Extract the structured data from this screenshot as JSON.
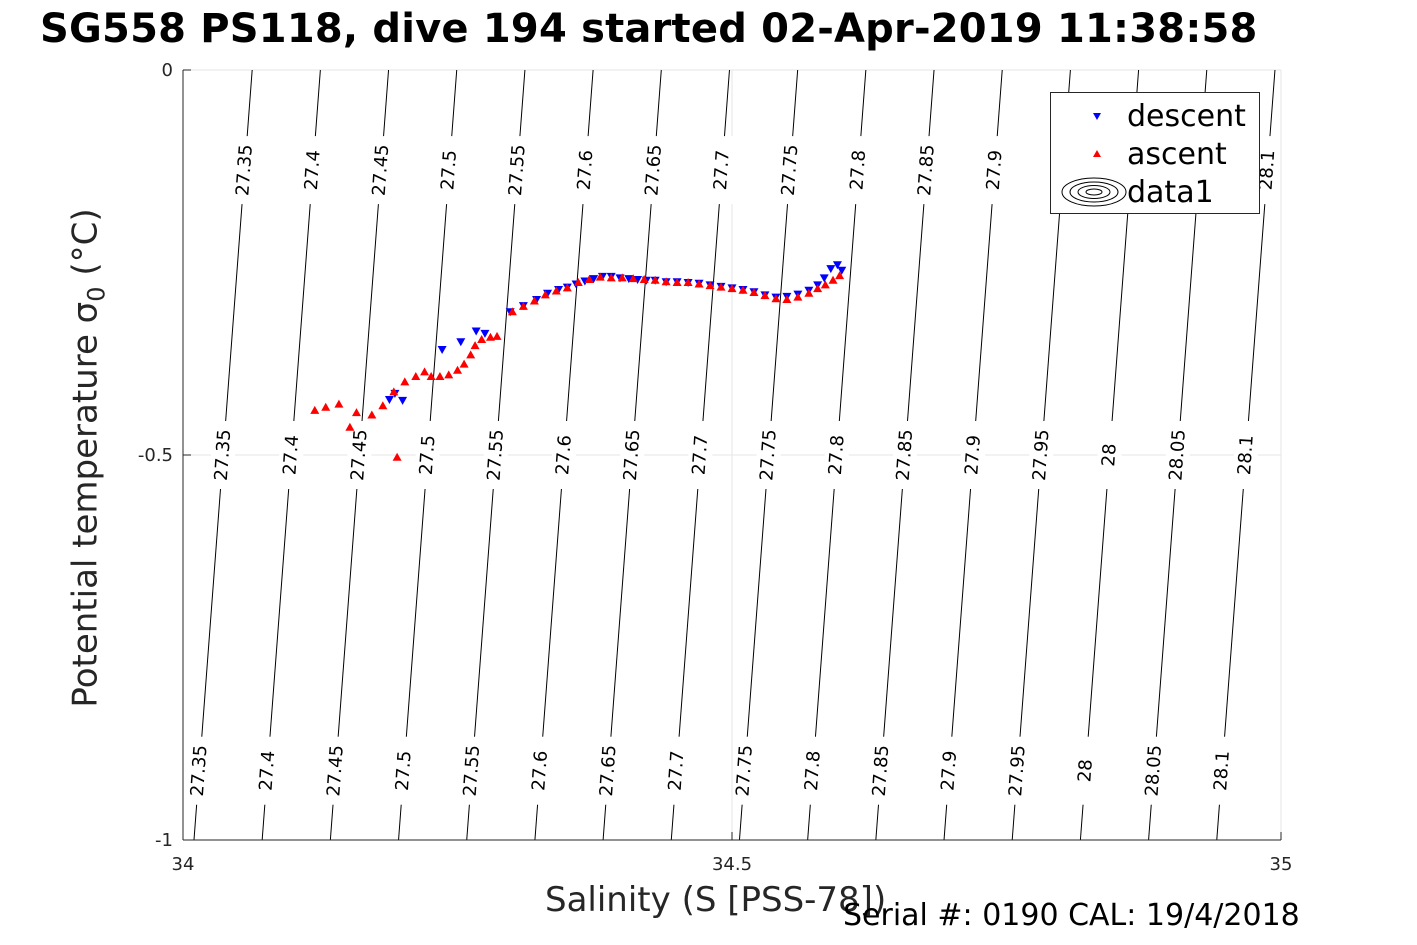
{
  "title": "SG558 PS118, dive 194 started 02-Apr-2019 11:38:58",
  "footer": {
    "serial": "Serial #: 0190  CAL: 19/4/2018"
  },
  "chart_data": {
    "type": "scatter",
    "xlabel": "Salinity (S [PSS-78])",
    "ylabel_text": "Potential temperature ",
    "ylabel_symbol": "σ",
    "ylabel_sub": "0",
    "ylabel_unit": " (°C)",
    "xlim": [
      34,
      35
    ],
    "ylim": [
      -1,
      0
    ],
    "y_reversed": true,
    "xticks": [
      34,
      34.5,
      35
    ],
    "xtick_labels": [
      "34",
      "34.5",
      "35"
    ],
    "yticks": [
      0,
      -0.5,
      -1
    ],
    "ytick_labels": [
      "0",
      "-0.5",
      "-1"
    ],
    "grid": true,
    "legend_position": "top-right",
    "legend": [
      "descent",
      "ascent",
      "data1"
    ],
    "colors": {
      "descent": "#0000ff",
      "ascent": "#ff0000",
      "contour": "#000000"
    },
    "contour_labels": [
      "27.35",
      "27.4",
      "27.45",
      "27.5",
      "27.55",
      "27.6",
      "27.65",
      "27.7",
      "27.75",
      "27.8",
      "27.85",
      "27.9",
      "27.95",
      "28",
      "28.05",
      "28.1"
    ],
    "contour_label_rows": [
      {
        "y": -0.13,
        "first": 0,
        "last": 15
      },
      {
        "y": -0.5,
        "first": 0,
        "last": 15
      },
      {
        "y": -0.91,
        "first": 0,
        "last": 15
      }
    ],
    "series": [
      {
        "name": "descent",
        "marker": "triangle-down",
        "points": [
          [
            34.188,
            -0.428
          ],
          [
            34.193,
            -0.42
          ],
          [
            34.2,
            -0.429
          ],
          [
            34.236,
            -0.363
          ],
          [
            34.253,
            -0.353
          ],
          [
            34.267,
            -0.339
          ],
          [
            34.275,
            -0.342
          ],
          [
            34.298,
            -0.314
          ],
          [
            34.31,
            -0.306
          ],
          [
            34.322,
            -0.298
          ],
          [
            34.332,
            -0.29
          ],
          [
            34.342,
            -0.285
          ],
          [
            34.35,
            -0.282
          ],
          [
            34.358,
            -0.278
          ],
          [
            34.366,
            -0.274
          ],
          [
            34.374,
            -0.271
          ],
          [
            34.382,
            -0.268
          ],
          [
            34.39,
            -0.268
          ],
          [
            34.398,
            -0.27
          ],
          [
            34.406,
            -0.271
          ],
          [
            34.414,
            -0.272
          ],
          [
            34.422,
            -0.273
          ],
          [
            34.43,
            -0.273
          ],
          [
            34.44,
            -0.275
          ],
          [
            34.45,
            -0.275
          ],
          [
            34.46,
            -0.276
          ],
          [
            34.47,
            -0.277
          ],
          [
            34.48,
            -0.279
          ],
          [
            34.49,
            -0.281
          ],
          [
            34.5,
            -0.283
          ],
          [
            34.51,
            -0.285
          ],
          [
            34.52,
            -0.288
          ],
          [
            34.53,
            -0.292
          ],
          [
            34.54,
            -0.295
          ],
          [
            34.55,
            -0.294
          ],
          [
            34.56,
            -0.291
          ],
          [
            34.57,
            -0.286
          ],
          [
            34.578,
            -0.279
          ],
          [
            34.584,
            -0.27
          ],
          [
            34.59,
            -0.258
          ],
          [
            34.596,
            -0.253
          ],
          [
            34.6,
            -0.26
          ]
        ]
      },
      {
        "name": "ascent",
        "marker": "triangle-up",
        "points": [
          [
            34.12,
            -0.442
          ],
          [
            34.13,
            -0.438
          ],
          [
            34.142,
            -0.434
          ],
          [
            34.152,
            -0.464
          ],
          [
            34.158,
            -0.445
          ],
          [
            34.172,
            -0.448
          ],
          [
            34.182,
            -0.436
          ],
          [
            34.192,
            -0.418
          ],
          [
            34.195,
            -0.503
          ],
          [
            34.202,
            -0.405
          ],
          [
            34.212,
            -0.398
          ],
          [
            34.22,
            -0.392
          ],
          [
            34.226,
            -0.398
          ],
          [
            34.234,
            -0.398
          ],
          [
            34.242,
            -0.396
          ],
          [
            34.25,
            -0.39
          ],
          [
            34.256,
            -0.382
          ],
          [
            34.262,
            -0.37
          ],
          [
            34.266,
            -0.358
          ],
          [
            34.272,
            -0.35
          ],
          [
            34.28,
            -0.347
          ],
          [
            34.286,
            -0.346
          ],
          [
            34.3,
            -0.314
          ],
          [
            34.31,
            -0.307
          ],
          [
            34.32,
            -0.3
          ],
          [
            34.33,
            -0.292
          ],
          [
            34.34,
            -0.287
          ],
          [
            34.35,
            -0.283
          ],
          [
            34.36,
            -0.276
          ],
          [
            34.37,
            -0.272
          ],
          [
            34.38,
            -0.269
          ],
          [
            34.39,
            -0.27
          ],
          [
            34.4,
            -0.27
          ],
          [
            34.41,
            -0.271
          ],
          [
            34.42,
            -0.272
          ],
          [
            34.43,
            -0.273
          ],
          [
            34.44,
            -0.275
          ],
          [
            34.45,
            -0.276
          ],
          [
            34.46,
            -0.276
          ],
          [
            34.47,
            -0.278
          ],
          [
            34.48,
            -0.28
          ],
          [
            34.49,
            -0.282
          ],
          [
            34.5,
            -0.284
          ],
          [
            34.51,
            -0.286
          ],
          [
            34.52,
            -0.289
          ],
          [
            34.53,
            -0.293
          ],
          [
            34.54,
            -0.297
          ],
          [
            34.55,
            -0.298
          ],
          [
            34.56,
            -0.295
          ],
          [
            34.57,
            -0.29
          ],
          [
            34.578,
            -0.284
          ],
          [
            34.585,
            -0.279
          ],
          [
            34.592,
            -0.273
          ],
          [
            34.598,
            -0.267
          ]
        ]
      }
    ]
  }
}
